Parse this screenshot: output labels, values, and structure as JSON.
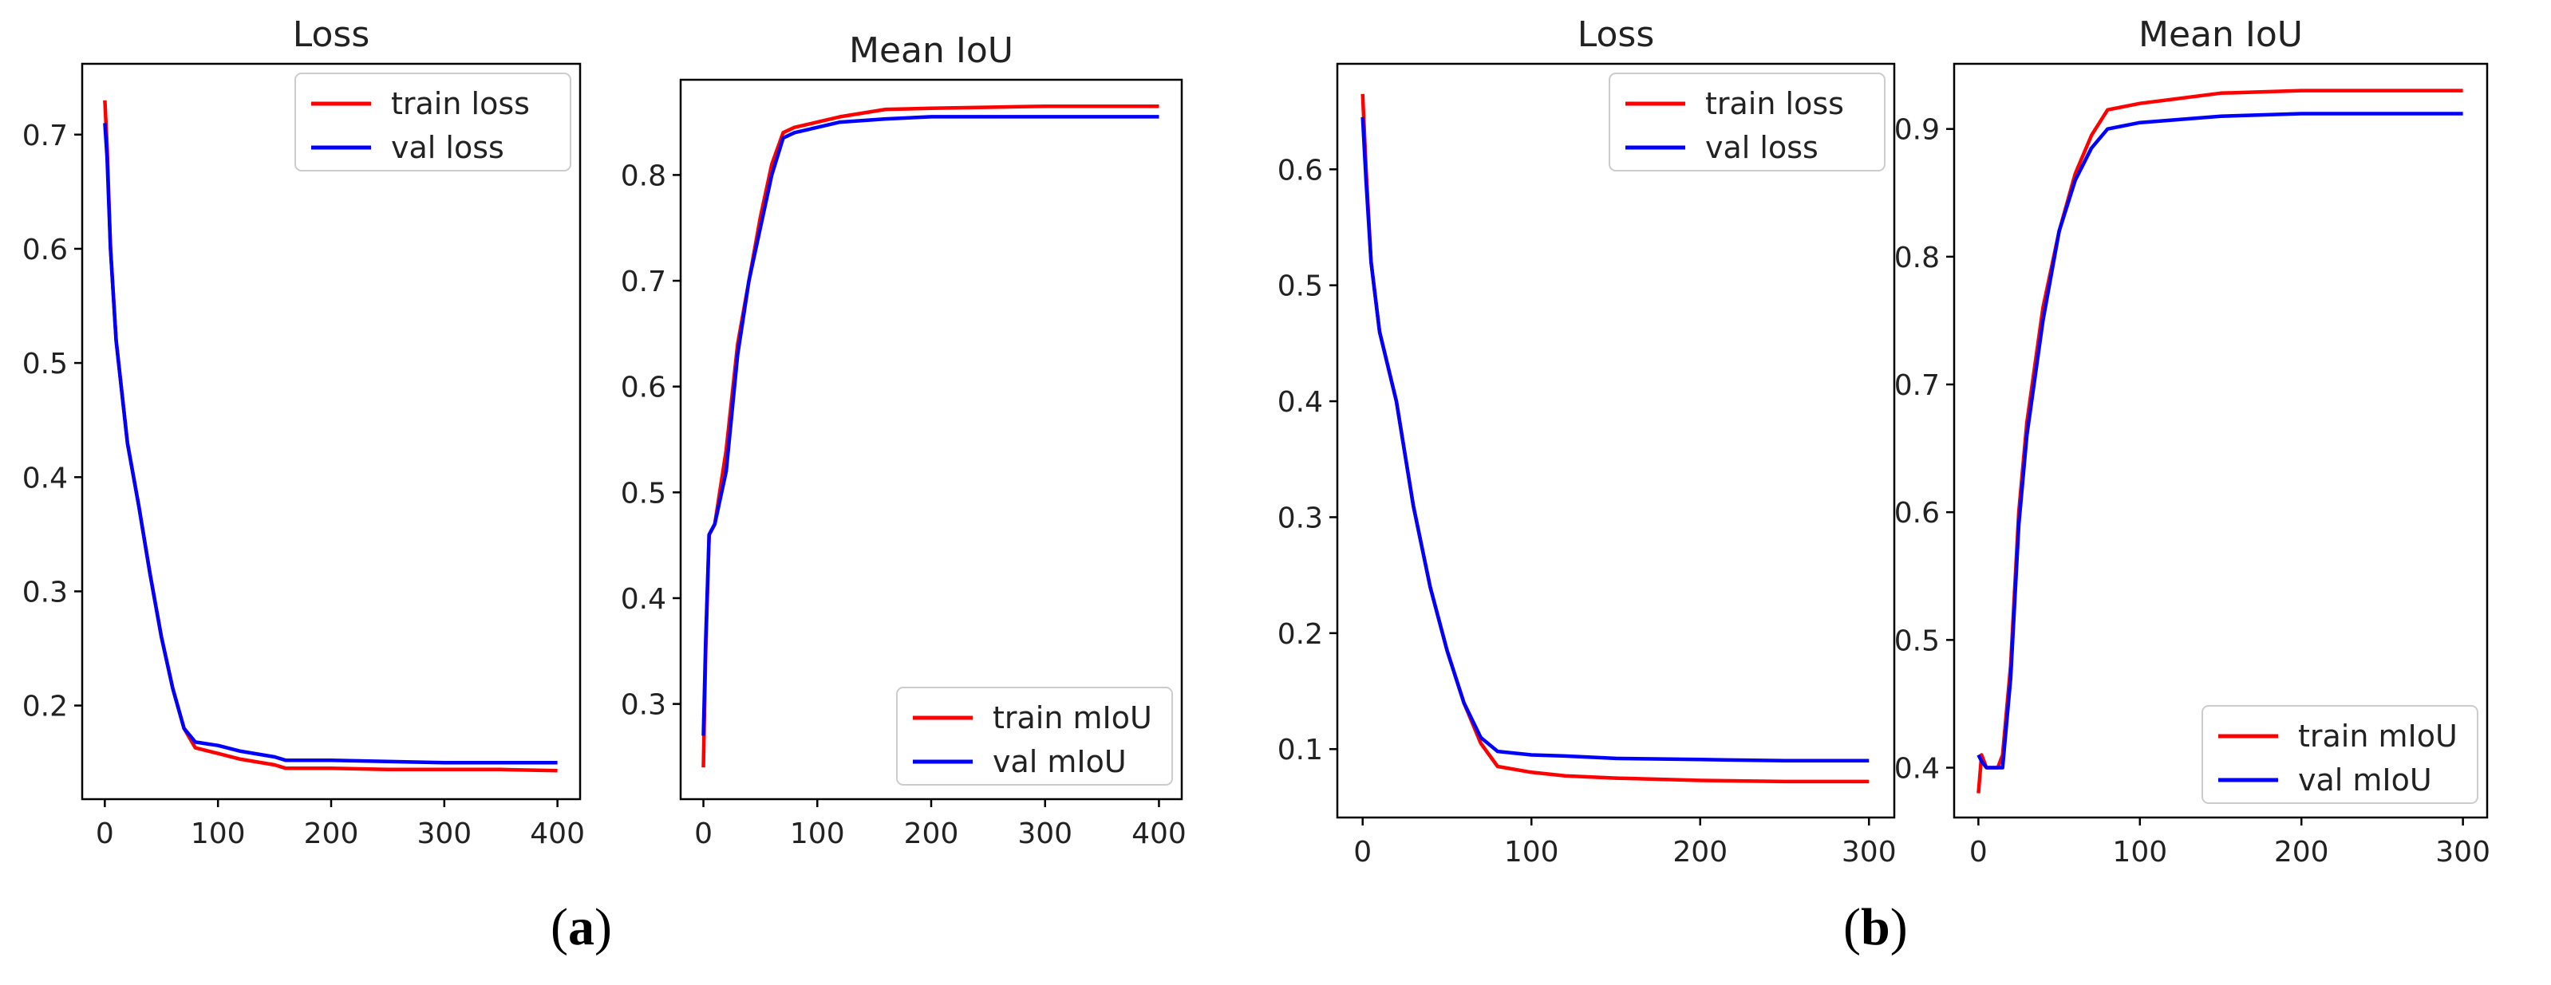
{
  "figure_labels": {
    "a": {
      "open": "(",
      "letter": "a",
      "close": ")"
    },
    "b": {
      "open": "(",
      "letter": "b",
      "close": ")"
    }
  },
  "colors": {
    "train": "#ff0000",
    "val": "#0000ff",
    "axis": "#000000",
    "text": "#222222"
  },
  "chart_data": [
    {
      "type": "line",
      "panel": "a",
      "title": "Loss",
      "xlabel": "",
      "ylabel": "",
      "xlim": [
        -20,
        420
      ],
      "ylim": [
        0.118,
        0.762
      ],
      "xticks": [
        0,
        100,
        200,
        300,
        400
      ],
      "yticks": [
        0.2,
        0.3,
        0.4,
        0.5,
        0.6,
        0.7
      ],
      "ytick_labels": [
        "0.2",
        "0.3",
        "0.4",
        "0.5",
        "0.6",
        "0.7"
      ],
      "legend_position": "top-right",
      "series": [
        {
          "name": "train loss",
          "color": "red",
          "x": [
            0,
            2,
            5,
            10,
            20,
            30,
            40,
            50,
            60,
            70,
            80,
            100,
            120,
            150,
            160,
            200,
            250,
            300,
            350,
            400
          ],
          "y": [
            0.73,
            0.69,
            0.6,
            0.52,
            0.43,
            0.375,
            0.315,
            0.26,
            0.215,
            0.18,
            0.163,
            0.158,
            0.153,
            0.148,
            0.145,
            0.145,
            0.144,
            0.144,
            0.144,
            0.143
          ]
        },
        {
          "name": "val loss",
          "color": "blue",
          "x": [
            0,
            2,
            5,
            10,
            20,
            30,
            40,
            50,
            60,
            70,
            80,
            100,
            120,
            150,
            160,
            200,
            250,
            300,
            350,
            400
          ],
          "y": [
            0.71,
            0.68,
            0.6,
            0.52,
            0.43,
            0.375,
            0.315,
            0.26,
            0.215,
            0.18,
            0.168,
            0.165,
            0.16,
            0.155,
            0.152,
            0.152,
            0.151,
            0.15,
            0.15,
            0.15
          ]
        }
      ]
    },
    {
      "type": "line",
      "panel": "a",
      "title": "Mean IoU",
      "xlabel": "",
      "ylabel": "",
      "xlim": [
        -20,
        420
      ],
      "ylim": [
        0.21,
        0.89
      ],
      "xticks": [
        0,
        100,
        200,
        300,
        400
      ],
      "yticks": [
        0.3,
        0.4,
        0.5,
        0.6,
        0.7,
        0.8
      ],
      "ytick_labels": [
        "0.3",
        "0.4",
        "0.5",
        "0.6",
        "0.7",
        "0.8"
      ],
      "legend_position": "bottom-right",
      "series": [
        {
          "name": "train mIoU",
          "color": "red",
          "x": [
            0,
            2,
            5,
            10,
            20,
            30,
            40,
            50,
            60,
            70,
            80,
            100,
            120,
            160,
            200,
            250,
            300,
            350,
            400
          ],
          "y": [
            0.24,
            0.35,
            0.46,
            0.47,
            0.54,
            0.64,
            0.7,
            0.76,
            0.81,
            0.84,
            0.845,
            0.85,
            0.855,
            0.862,
            0.863,
            0.864,
            0.865,
            0.865,
            0.865
          ]
        },
        {
          "name": "val mIoU",
          "color": "blue",
          "x": [
            0,
            2,
            5,
            10,
            20,
            30,
            40,
            50,
            60,
            70,
            80,
            100,
            120,
            160,
            200,
            250,
            300,
            350,
            400
          ],
          "y": [
            0.27,
            0.36,
            0.46,
            0.47,
            0.52,
            0.63,
            0.7,
            0.75,
            0.8,
            0.835,
            0.84,
            0.845,
            0.85,
            0.853,
            0.855,
            0.855,
            0.855,
            0.855,
            0.855
          ]
        }
      ]
    },
    {
      "type": "line",
      "panel": "b",
      "title": "Loss",
      "xlabel": "",
      "ylabel": "",
      "xlim": [
        -15,
        315
      ],
      "ylim": [
        0.041,
        0.691
      ],
      "xticks": [
        0,
        100,
        200,
        300
      ],
      "yticks": [
        0.1,
        0.2,
        0.3,
        0.4,
        0.5,
        0.6
      ],
      "ytick_labels": [
        "0.1",
        "0.2",
        "0.3",
        "0.4",
        "0.5",
        "0.6"
      ],
      "legend_position": "top-right",
      "series": [
        {
          "name": "train loss",
          "color": "red",
          "x": [
            0,
            2,
            5,
            10,
            20,
            30,
            40,
            50,
            60,
            70,
            80,
            100,
            120,
            150,
            200,
            250,
            300
          ],
          "y": [
            0.665,
            0.6,
            0.52,
            0.46,
            0.4,
            0.31,
            0.24,
            0.185,
            0.14,
            0.105,
            0.085,
            0.08,
            0.077,
            0.075,
            0.073,
            0.072,
            0.072
          ]
        },
        {
          "name": "val loss",
          "color": "blue",
          "x": [
            0,
            2,
            5,
            10,
            20,
            30,
            40,
            50,
            60,
            70,
            80,
            100,
            120,
            150,
            200,
            250,
            300
          ],
          "y": [
            0.645,
            0.59,
            0.52,
            0.46,
            0.4,
            0.31,
            0.24,
            0.185,
            0.14,
            0.11,
            0.098,
            0.095,
            0.094,
            0.092,
            0.091,
            0.09,
            0.09
          ]
        }
      ]
    },
    {
      "type": "line",
      "panel": "b",
      "title": "Mean IoU",
      "xlabel": "",
      "ylabel": "",
      "xlim": [
        -15,
        315
      ],
      "ylim": [
        0.361,
        0.951
      ],
      "xticks": [
        0,
        100,
        200,
        300
      ],
      "yticks": [
        0.4,
        0.5,
        0.6,
        0.7,
        0.8,
        0.9
      ],
      "ytick_labels": [
        "0.4",
        "0.5",
        "0.6",
        "0.7",
        "0.8",
        "0.9"
      ],
      "legend_position": "bottom-right",
      "series": [
        {
          "name": "train mIoU",
          "color": "red",
          "x": [
            0,
            2,
            5,
            8,
            12,
            15,
            20,
            25,
            30,
            40,
            50,
            60,
            70,
            80,
            100,
            150,
            200,
            250,
            300
          ],
          "y": [
            0.38,
            0.41,
            0.4,
            0.4,
            0.4,
            0.41,
            0.48,
            0.6,
            0.67,
            0.76,
            0.82,
            0.865,
            0.895,
            0.915,
            0.92,
            0.928,
            0.93,
            0.93,
            0.93
          ]
        },
        {
          "name": "val mIoU",
          "color": "blue",
          "x": [
            0,
            2,
            5,
            8,
            12,
            15,
            20,
            25,
            30,
            40,
            50,
            60,
            70,
            80,
            100,
            150,
            200,
            250,
            300
          ],
          "y": [
            0.41,
            0.405,
            0.4,
            0.4,
            0.4,
            0.4,
            0.47,
            0.59,
            0.66,
            0.75,
            0.82,
            0.86,
            0.885,
            0.9,
            0.905,
            0.91,
            0.912,
            0.912,
            0.912
          ]
        }
      ]
    }
  ]
}
